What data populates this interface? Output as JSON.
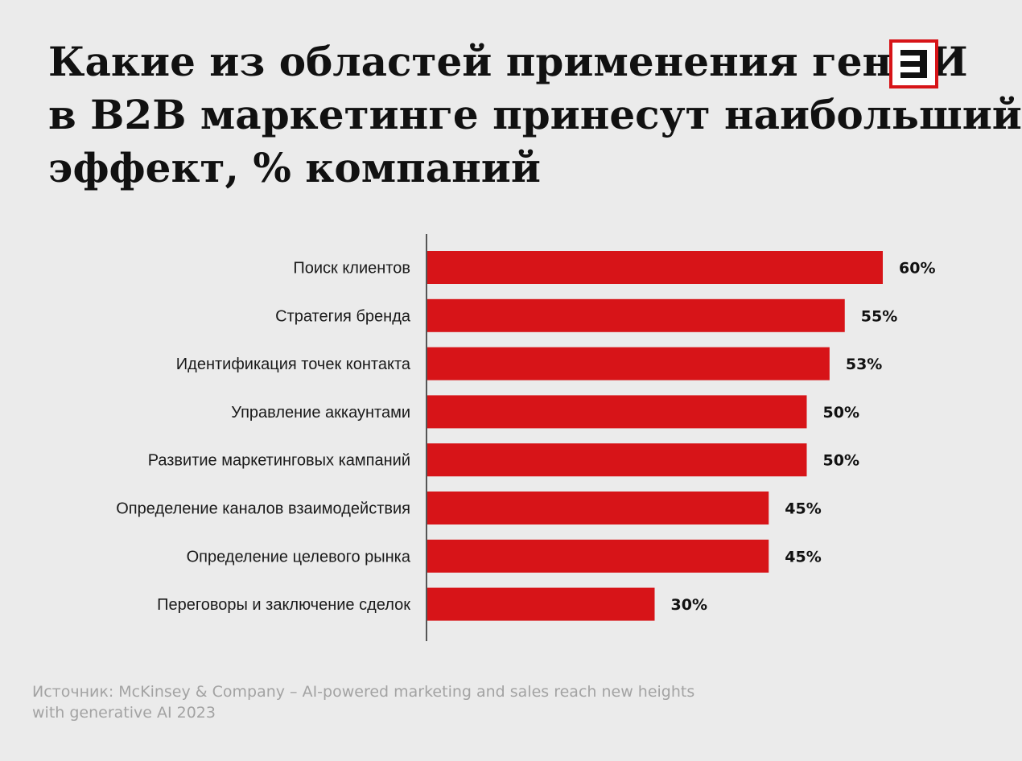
{
  "title_lines": [
    "Какие из областей применения генИИ",
    "в B2B маркетинге принесут наибольший",
    "эффект, % компаний"
  ],
  "logo": {
    "icon": "letter-e-logo",
    "border_color": "#d71418"
  },
  "source_lines": [
    "Источник: McKinsey & Company – AI-powered marketing and sales reach new heights",
    "with generative AI 2023"
  ],
  "colors": {
    "bar": "#d71418",
    "background": "#ebebeb",
    "text": "#111111",
    "axis": "#555555"
  },
  "chart_data": {
    "type": "bar",
    "orientation": "horizontal",
    "categories": [
      "Поиск клиентов",
      "Стратегия бренда",
      "Идентификация точек контакта",
      "Управление аккаунтами",
      "Развитие маркетинговых кампаний",
      "Определение каналов взаимодействия",
      "Определение целевого рынка",
      "Переговоры и заключение сделок"
    ],
    "values": [
      60,
      55,
      53,
      50,
      50,
      45,
      45,
      30
    ],
    "value_labels": [
      "60%",
      "55%",
      "53%",
      "50%",
      "50%",
      "45%",
      "45%",
      "30%"
    ],
    "title": "Какие из областей применения генИИ в B2B маркетинге принесут наибольший эффект, % компаний",
    "xlabel": "",
    "ylabel": "",
    "xlim": [
      0,
      60
    ],
    "grid": false,
    "legend": "none"
  }
}
